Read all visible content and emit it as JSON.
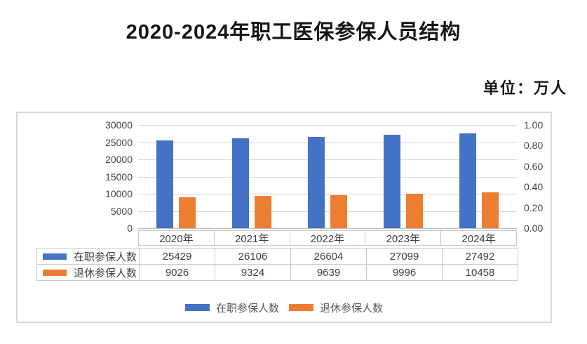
{
  "page": {
    "title": "2020-2024年职工医保参保人员结构",
    "unit_label": "单位：万人"
  },
  "chart_data": {
    "type": "bar",
    "title": "2020-2024年职工医保参保人员结构",
    "unit": "万人",
    "categories": [
      "2020年",
      "2021年",
      "2022年",
      "2023年",
      "2024年"
    ],
    "series": [
      {
        "name": "在职参保人数",
        "color": "#4472C4",
        "values": [
          25429,
          26106,
          26604,
          27099,
          27492
        ]
      },
      {
        "name": "退休参保人数",
        "color": "#ED7D31",
        "values": [
          9026,
          9324,
          9639,
          9996,
          10458
        ]
      }
    ],
    "left_axis": {
      "min": 0,
      "max": 30000,
      "step": 5000,
      "ticks": [
        "30000",
        "25000",
        "20000",
        "15000",
        "10000",
        "5000",
        "0"
      ]
    },
    "right_axis": {
      "min": 0,
      "max": 1,
      "step": 0.2,
      "ticks": [
        "1.00",
        "0.80",
        "0.60",
        "0.40",
        "0.20",
        "0.00"
      ]
    },
    "grid": true,
    "legend_position": "bottom",
    "has_data_table": true,
    "colors": {
      "gridline": "#d9d9d9",
      "axis_text": "#444444",
      "table_border": "#c8c8c8"
    }
  }
}
